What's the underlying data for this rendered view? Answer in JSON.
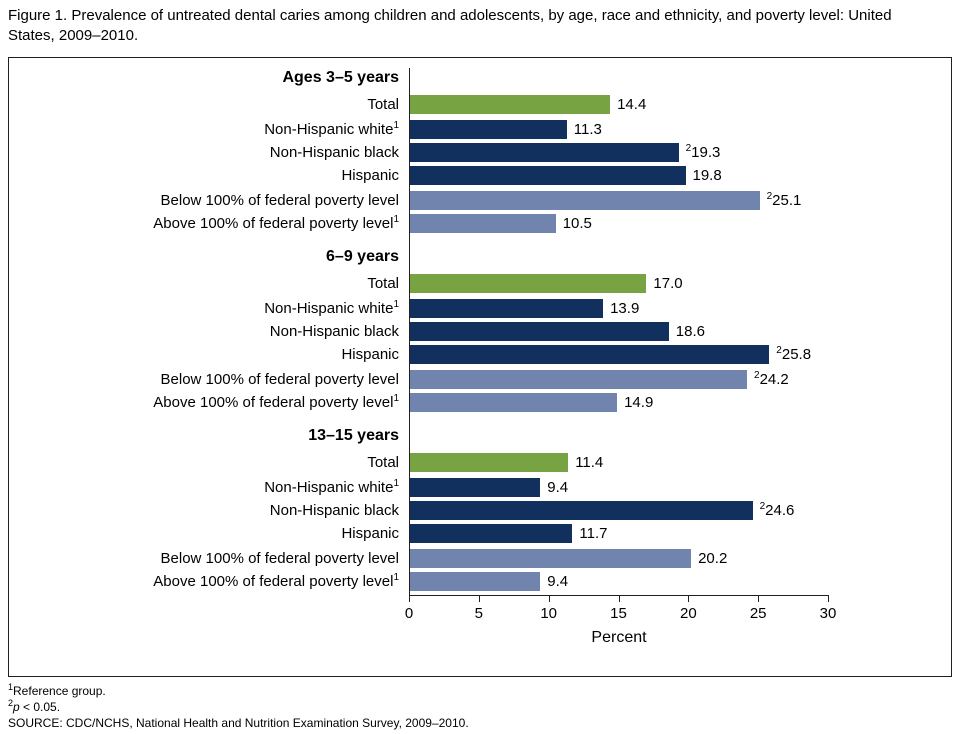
{
  "figure": {
    "title": "Figure 1. Prevalence of untreated dental caries among children and adolescents, by age, race and ethnicity, and poverty level: United States, 2009–2010."
  },
  "chart_data": {
    "type": "bar",
    "orientation": "horizontal",
    "xlabel": "Percent",
    "xlim": [
      0,
      30
    ],
    "xticks": [
      0,
      5,
      10,
      15,
      20,
      25,
      30
    ],
    "legend": "none",
    "axis_color": "#231f20",
    "colors": {
      "total": "#77a342",
      "race": "#11305d",
      "poverty": "#7184ad"
    },
    "groups": [
      {
        "heading": "Ages 3–5 years",
        "rows": [
          {
            "label": "Total",
            "label_sup": "",
            "series": "total",
            "value": 14.4,
            "display": "14.4",
            "value_sup": ""
          },
          {
            "label": "Non-Hispanic white",
            "label_sup": "1",
            "series": "race",
            "value": 11.3,
            "display": "11.3",
            "value_sup": ""
          },
          {
            "label": "Non-Hispanic black",
            "label_sup": "",
            "series": "race",
            "value": 19.3,
            "display": "19.3",
            "value_sup": "2"
          },
          {
            "label": "Hispanic",
            "label_sup": "",
            "series": "race",
            "value": 19.8,
            "display": "19.8",
            "value_sup": ""
          },
          {
            "label": "Below 100% of federal poverty level",
            "label_sup": "",
            "series": "poverty",
            "value": 25.1,
            "display": "25.1",
            "value_sup": "2"
          },
          {
            "label": "Above 100% of federal poverty level",
            "label_sup": "1",
            "series": "poverty",
            "value": 10.5,
            "display": "10.5",
            "value_sup": ""
          }
        ]
      },
      {
        "heading": "6–9 years",
        "rows": [
          {
            "label": "Total",
            "label_sup": "",
            "series": "total",
            "value": 17.0,
            "display": "17.0",
            "value_sup": ""
          },
          {
            "label": "Non-Hispanic white",
            "label_sup": "1",
            "series": "race",
            "value": 13.9,
            "display": "13.9",
            "value_sup": ""
          },
          {
            "label": "Non-Hispanic black",
            "label_sup": "",
            "series": "race",
            "value": 18.6,
            "display": "18.6",
            "value_sup": ""
          },
          {
            "label": "Hispanic",
            "label_sup": "",
            "series": "race",
            "value": 25.8,
            "display": "25.8",
            "value_sup": "2"
          },
          {
            "label": "Below 100% of federal poverty level",
            "label_sup": "",
            "series": "poverty",
            "value": 24.2,
            "display": "24.2",
            "value_sup": "2"
          },
          {
            "label": "Above 100% of federal poverty level",
            "label_sup": "1",
            "series": "poverty",
            "value": 14.9,
            "display": "14.9",
            "value_sup": ""
          }
        ]
      },
      {
        "heading": "13–15 years",
        "rows": [
          {
            "label": "Total",
            "label_sup": "",
            "series": "total",
            "value": 11.4,
            "display": "11.4",
            "value_sup": ""
          },
          {
            "label": "Non-Hispanic white",
            "label_sup": "1",
            "series": "race",
            "value": 9.4,
            "display": "9.4",
            "value_sup": ""
          },
          {
            "label": "Non-Hispanic black",
            "label_sup": "",
            "series": "race",
            "value": 24.6,
            "display": "24.6",
            "value_sup": "2"
          },
          {
            "label": "Hispanic",
            "label_sup": "",
            "series": "race",
            "value": 11.7,
            "display": "11.7",
            "value_sup": ""
          },
          {
            "label": "Below 100% of federal poverty level",
            "label_sup": "",
            "series": "poverty",
            "value": 20.2,
            "display": "20.2",
            "value_sup": ""
          },
          {
            "label": "Above 100% of federal poverty level",
            "label_sup": "1",
            "series": "poverty",
            "value": 9.4,
            "display": "9.4",
            "value_sup": ""
          }
        ]
      }
    ],
    "footnotes": [
      {
        "sup": "1",
        "italic": "",
        "text": "Reference group."
      },
      {
        "sup": "2",
        "italic": "p",
        "text": " < 0.05."
      },
      {
        "sup": "",
        "italic": "",
        "text": "SOURCE: CDC/NCHS, National Health and Nutrition Examination Survey, 2009–2010."
      }
    ]
  }
}
